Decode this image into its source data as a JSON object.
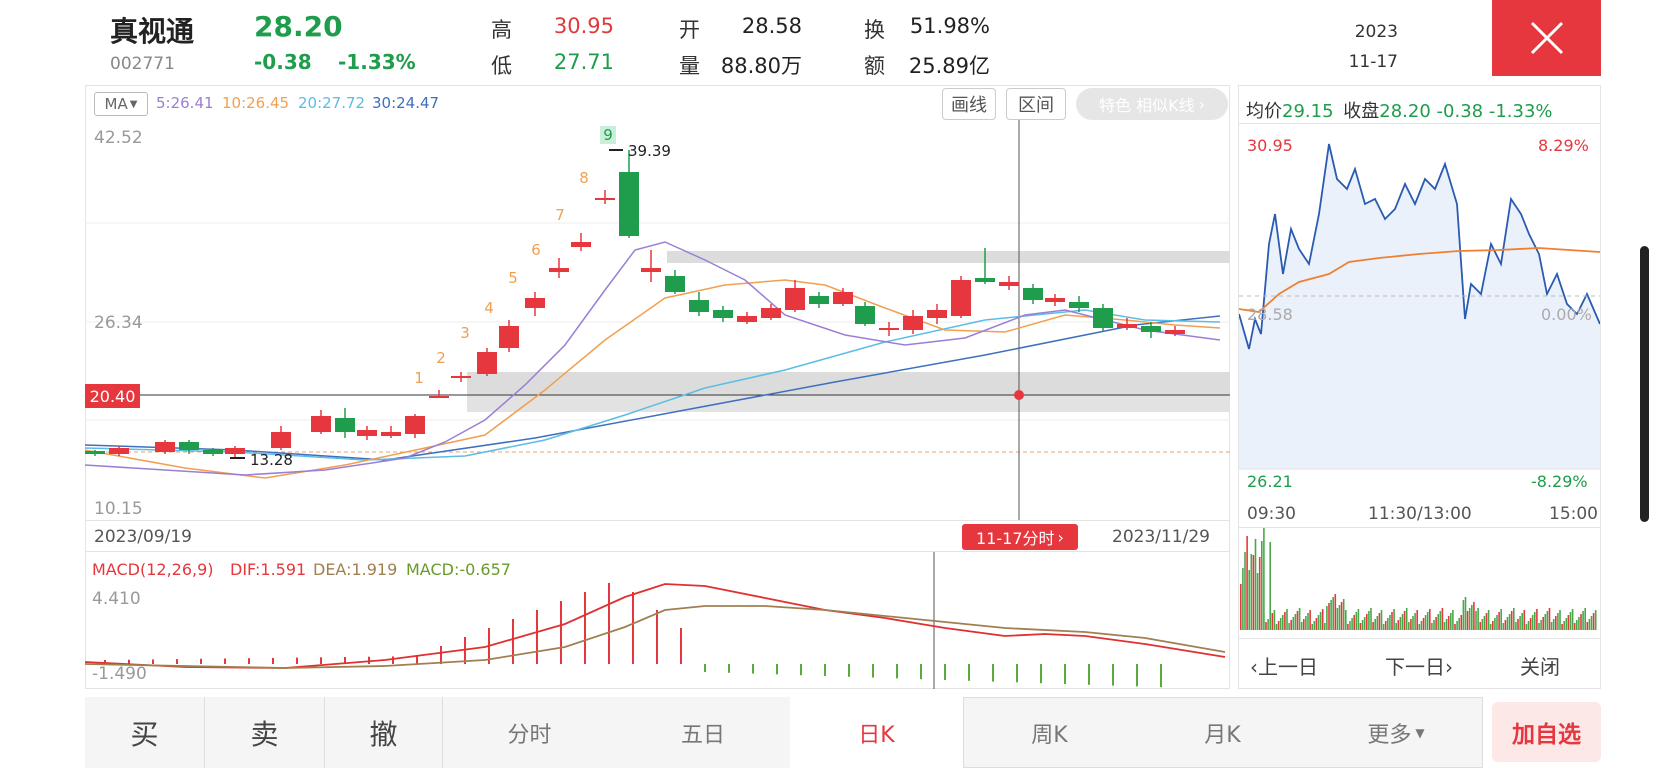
{
  "stock": {
    "name": "真视通",
    "code": "002771",
    "price": "28.20",
    "change": "-0.38",
    "change_pct": "-1.33%"
  },
  "quote": {
    "high_label": "高",
    "high": "30.95",
    "low_label": "低",
    "low": "27.71",
    "open_label": "开",
    "open": "28.58",
    "volume_label": "量",
    "volume": "88.80万",
    "turnover_label": "换",
    "turnover": "51.98%",
    "amount_label": "额",
    "amount": "25.89亿"
  },
  "date": {
    "year": "2023",
    "md": "11-17"
  },
  "toolbar": {
    "ma_selector": "MA",
    "ma5": "5:26.41",
    "ma10": "10:26.45",
    "ma20": "20:27.72",
    "ma30": "30:24.47",
    "draw_label": "画线",
    "range_label": "区间",
    "feature_label": "特色 相似K线"
  },
  "kline": {
    "y_top": "42.52",
    "y_mid": "26.34",
    "y_bottom": "10.15",
    "crosshair_price": "20.40",
    "max_marker": "39.39",
    "min_marker": "13.28",
    "date_start": "2023/09/19",
    "date_end": "2023/11/29",
    "crosshair_date": "11-17分时",
    "td_counts": [
      "1",
      "2",
      "3",
      "4",
      "5",
      "6",
      "7",
      "8",
      "9"
    ]
  },
  "macd": {
    "title": "MACD(12,26,9)",
    "dif": "DIF:1.591",
    "dea": "DEA:1.919",
    "macd": "MACD:-0.657",
    "y_top": "4.410",
    "y_bottom": "-1.490"
  },
  "intraday": {
    "avg_label": "均价",
    "avg": "29.15",
    "close_label": "收盘",
    "close": "28.20",
    "change": "-0.38",
    "change_pct": "-1.33%",
    "high": "30.95",
    "high_pct": "8.29%",
    "base": "28.58",
    "base_pct": "0.00%",
    "low": "26.21",
    "low_pct": "-8.29%",
    "time_open": "09:30",
    "time_mid": "11:30/13:00",
    "time_close": "15:00",
    "prev_day": "上一日",
    "next_day": "下一日",
    "close_panel": "关闭"
  },
  "tabs": {
    "buy": "买",
    "sell": "卖",
    "cancel": "撤",
    "timeshare": "分时",
    "five_day": "五日",
    "day_k": "日K",
    "week_k": "周K",
    "month_k": "月K",
    "more": "更多",
    "add_watch": "加自选"
  },
  "colors": {
    "up": "#e5373d",
    "down": "#1f9d4c",
    "ma5": "#9b7fd4",
    "ma10": "#f0a050",
    "ma20": "#5bbce4",
    "ma30": "#3f6fbf"
  }
}
